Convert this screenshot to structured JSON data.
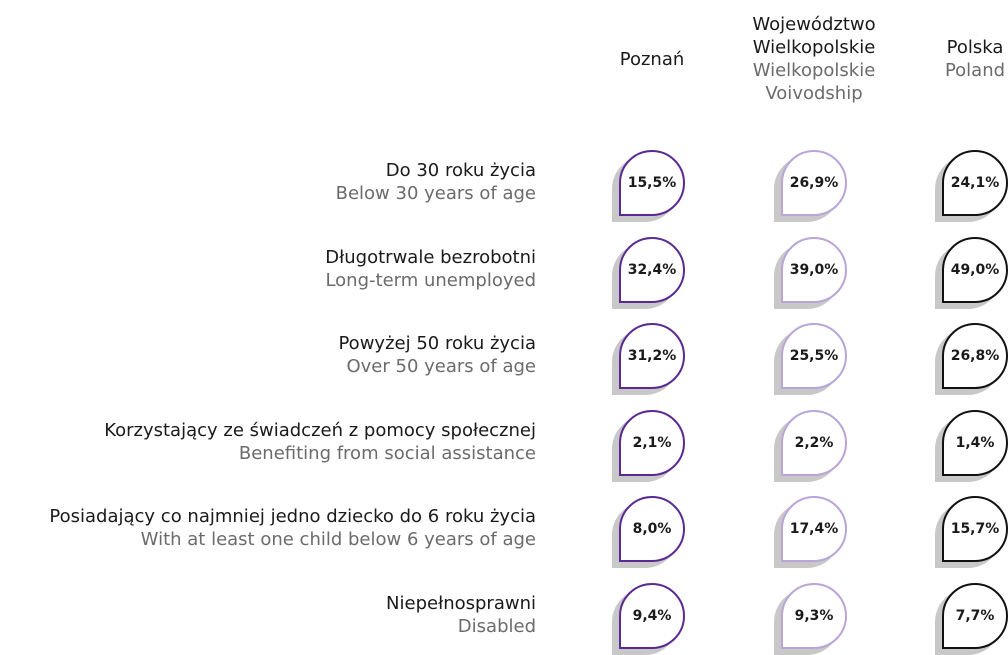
{
  "columns": [
    {
      "lines": [
        "Poznań"
      ],
      "sublines": []
    },
    {
      "lines": [
        "Województwo",
        "Wielkopolskie"
      ],
      "sublines": [
        "Wielkopolskie",
        "Voivodship"
      ]
    },
    {
      "lines": [
        "Polska"
      ],
      "sublines": [
        "Poland"
      ]
    }
  ],
  "rows": [
    {
      "label": "Do 30 roku życia",
      "sublabel": "Below 30 years of age",
      "values": [
        "15,5%",
        "26,9%",
        "24,1%"
      ]
    },
    {
      "label": "Długotrwale bezrobotni",
      "sublabel": "Long-term unemployed",
      "values": [
        "32,4%",
        "39,0%",
        "49,0%"
      ]
    },
    {
      "label": "Powyżej 50 roku życia",
      "sublabel": "Over 50 years of age",
      "values": [
        "31,2%",
        "25,5%",
        "26,8%"
      ]
    },
    {
      "label": "Korzystający ze świadczeń z pomocy społecznej",
      "sublabel": "Benefiting from social assistance",
      "values": [
        "2,1%",
        "2,2%",
        "1,4%"
      ]
    },
    {
      "label": "Posiadający co najmniej jedno dziecko do 6 roku życia",
      "sublabel": "With at least one child below 6 years of age",
      "values": [
        "8,0%",
        "17,4%",
        "15,7%"
      ]
    },
    {
      "label": "Niepełnosprawni",
      "sublabel": "Disabled",
      "values": [
        "9,4%",
        "9,3%",
        "7,7%"
      ]
    }
  ]
}
